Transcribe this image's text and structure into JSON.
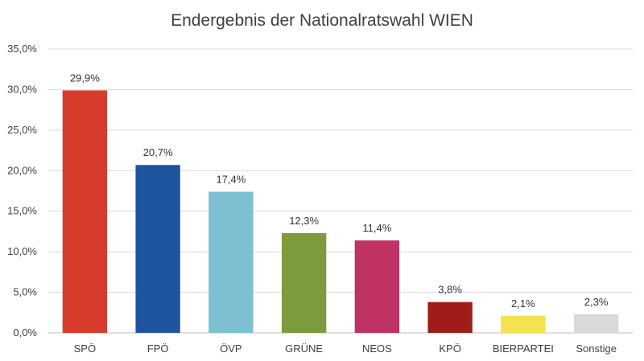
{
  "chart_data": {
    "type": "bar",
    "title": "Endergebnis der Nationalratswahl WIEN",
    "xlabel": "",
    "ylabel": "",
    "ylim": [
      0,
      35
    ],
    "grid": true,
    "legend": "none",
    "y_ticks": [
      "0,0%",
      "5,0%",
      "10,0%",
      "15,0%",
      "20,0%",
      "25,0%",
      "30,0%",
      "35,0%"
    ],
    "y_tick_values": [
      0,
      5,
      10,
      15,
      20,
      25,
      30,
      35
    ],
    "categories": [
      "SPÖ",
      "FPÖ",
      "ÖVP",
      "GRÜNE",
      "NEOS",
      "KPÖ",
      "BIERPARTEI",
      "Sonstige"
    ],
    "values": [
      29.9,
      20.7,
      17.4,
      12.3,
      11.4,
      3.8,
      2.1,
      2.3
    ],
    "value_labels": [
      "29,9%",
      "20,7%",
      "17,4%",
      "12,3%",
      "11,4%",
      "3,8%",
      "2,1%",
      "2,3%"
    ],
    "colors": [
      "#d63b2b",
      "#1f55a0",
      "#7dc0d2",
      "#7b9b3c",
      "#c03164",
      "#9e1d18",
      "#f4e24e",
      "#d9d9d9"
    ]
  }
}
